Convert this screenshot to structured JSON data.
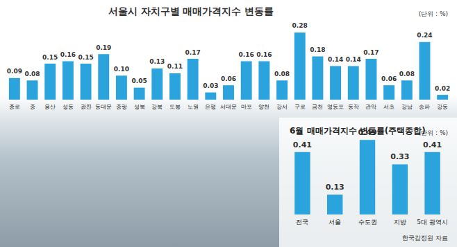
{
  "chart_data": [
    {
      "type": "bar",
      "title": "서울시 자치구별 매매가격지수 변동률",
      "subtitle": "(단위 : %)",
      "categories": [
        "종로",
        "중",
        "용산",
        "성동",
        "광진",
        "동대문",
        "중랑",
        "성북",
        "강북",
        "도봉",
        "노원",
        "은평",
        "서대문",
        "마포",
        "양천",
        "강서",
        "구로",
        "금천",
        "영등포",
        "동작",
        "관악",
        "서초",
        "강남",
        "송파",
        "강동"
      ],
      "values": [
        0.09,
        0.08,
        0.15,
        0.16,
        0.15,
        0.19,
        0.1,
        0.05,
        0.13,
        0.11,
        0.17,
        0.03,
        0.06,
        0.16,
        0.16,
        0.08,
        0.28,
        0.18,
        0.14,
        0.14,
        0.17,
        0.06,
        0.08,
        0.24,
        0.02
      ],
      "value_labels": [
        "0.09",
        "0.08",
        "0.15",
        "0.16",
        "0.15",
        "0.19",
        "0.10",
        "0.05",
        "0.13",
        "0.11",
        "0.17",
        "0.03",
        "0.06",
        "0.16",
        "0.16",
        "0.08",
        "0.28",
        "0.18",
        "0.14",
        "0.14",
        "0.17",
        "0.06",
        "0.08",
        "0.24",
        "0.02"
      ],
      "color": "#2ba3dc",
      "ylim": [
        0,
        0.3
      ],
      "data_labels": true,
      "tick_labels": "x",
      "grid": false
    },
    {
      "type": "bar",
      "title": "6월 매매가격지수 변동률(주택종합)",
      "subtitle": "(단위 : %)",
      "annotations": [
        "한국감정원 자료"
      ],
      "categories": [
        "전국",
        "서울",
        "수도권",
        "지방",
        "5대 광역시"
      ],
      "values": [
        0.41,
        0.13,
        0.49,
        0.33,
        0.41
      ],
      "color": "#2ba3dc",
      "ylim": [
        0,
        0.5
      ],
      "data_labels": true,
      "tick_labels": "x",
      "grid": false
    }
  ]
}
